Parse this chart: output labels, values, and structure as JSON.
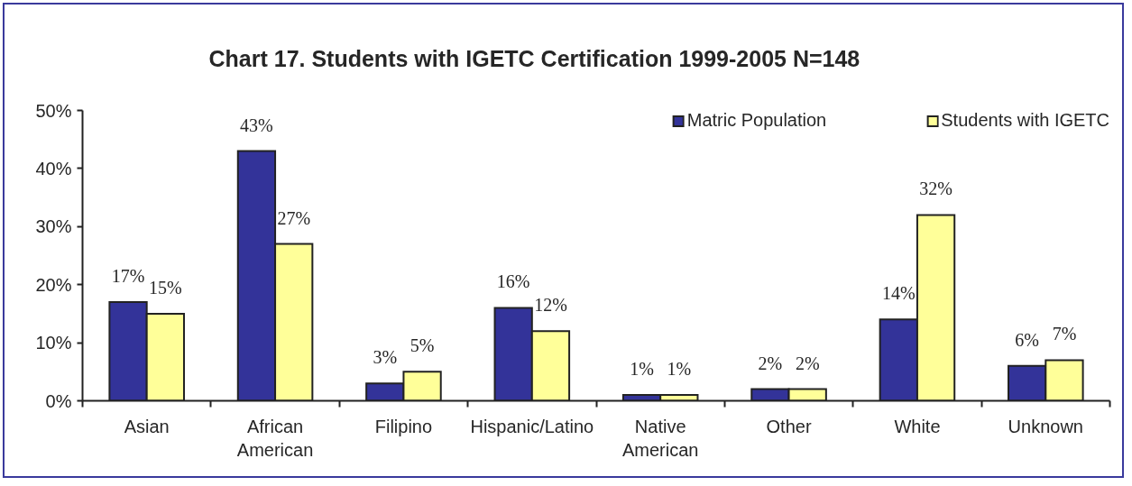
{
  "chart_data": {
    "type": "bar",
    "title": "Chart 17. Students with IGETC Certification 1999-2005 N=148",
    "categories": [
      "Asian",
      "African American",
      "Filipino",
      "Hispanic/Latino",
      "Native American",
      "Other",
      "White",
      "Unknown"
    ],
    "series": [
      {
        "name": "Matric Population",
        "color": "#333399",
        "values": [
          17,
          43,
          3,
          16,
          1,
          2,
          14,
          6
        ],
        "value_labels": [
          "17%",
          "43%",
          "3%",
          "16%",
          "1%",
          "2%",
          "14%",
          "6%"
        ]
      },
      {
        "name": "Students with IGETC",
        "color": "#ffff99",
        "values": [
          15,
          27,
          5,
          12,
          1,
          2,
          32,
          7
        ],
        "value_labels": [
          "15%",
          "27%",
          "5%",
          "12%",
          "1%",
          "2%",
          "32%",
          "7%"
        ]
      }
    ],
    "ylim": [
      0,
      50
    ],
    "yticks": [
      {
        "value": 0,
        "label": "0%"
      },
      {
        "value": 10,
        "label": "10%"
      },
      {
        "value": 20,
        "label": "20%"
      },
      {
        "value": 30,
        "label": "30%"
      },
      {
        "value": 40,
        "label": "40%"
      },
      {
        "value": 50,
        "label": "50%"
      }
    ],
    "grid": false,
    "legend": "top right"
  }
}
